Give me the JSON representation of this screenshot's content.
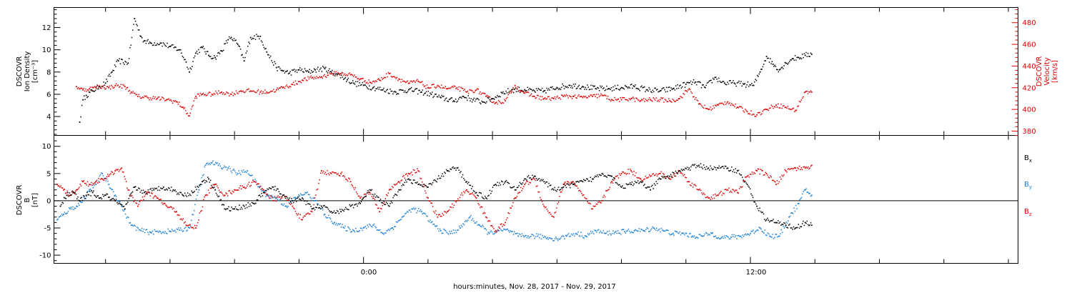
{
  "x_axis": {
    "label": "hours:minutes, Nov. 28, 2017 - Nov. 29, 2017",
    "tick_labels": [
      "0:00",
      "12:00"
    ]
  },
  "colors": {
    "black": "#000000",
    "red": "#e00000",
    "blue": "#1a7fd6"
  },
  "chart_data": [
    {
      "type": "scatter",
      "title": "",
      "x_units": "hours relative to 2017-11-29 00:00 UTC",
      "xlim": [
        -9.6,
        20.3
      ],
      "grid": false,
      "y_left": {
        "label_lines": [
          "DSCOVR",
          "Ion Density",
          "[cm⁻³]"
        ],
        "ylim": [
          2.3,
          13.8
        ],
        "ticks": [
          4,
          6,
          8,
          10,
          12
        ]
      },
      "y_right": {
        "label_lines": [
          "DSCOVR",
          "Velocity",
          "[km/s]"
        ],
        "ylim": [
          376,
          494
        ],
        "ticks": [
          380,
          400,
          420,
          440,
          460,
          480
        ]
      },
      "series": [
        {
          "role": "density",
          "axis": "left",
          "color": "#000000",
          "x": [
            -8.8,
            -8.7,
            -8.6,
            -8.4,
            -8.2,
            -8.0,
            -7.8,
            -7.6,
            -7.3,
            -7.1,
            -6.9,
            -6.8,
            -6.6,
            -6.3,
            -6.0,
            -5.7,
            -5.5,
            -5.4,
            -5.2,
            -5.0,
            -4.8,
            -4.6,
            -4.4,
            -4.2,
            -4.1,
            -3.9,
            -3.7,
            -3.5,
            -3.2,
            -3.0,
            -2.7,
            -2.5,
            -2.3,
            -2.0,
            -1.7,
            -1.5,
            -1.2,
            -1.0,
            -0.8,
            -0.5,
            -0.3,
            0.0,
            0.3,
            0.6,
            1.0,
            1.4,
            1.8,
            2.1,
            2.4,
            2.8,
            3.1,
            3.4,
            3.7,
            4.0,
            4.3,
            4.6,
            5.0,
            5.3,
            5.6,
            6.0,
            6.4,
            6.8,
            7.2,
            7.6,
            8.0,
            8.4,
            8.8,
            9.2,
            9.6,
            10.0,
            10.3,
            10.6,
            10.9,
            11.2,
            11.5,
            11.8,
            12.1,
            12.3,
            12.5,
            12.7,
            12.9,
            13.1,
            13.3,
            13.5,
            13.7,
            13.9
          ],
          "y": [
            3.5,
            5.5,
            5.9,
            6.3,
            6.7,
            7.0,
            8.0,
            9.0,
            8.8,
            12.8,
            11.2,
            10.8,
            10.6,
            10.6,
            10.3,
            10.0,
            8.9,
            8.0,
            9.7,
            10.2,
            9.5,
            9.3,
            9.9,
            10.9,
            11.1,
            10.5,
            9.0,
            11.1,
            11.2,
            9.8,
            8.4,
            8.1,
            7.9,
            8.2,
            8.0,
            8.2,
            8.3,
            8.0,
            7.8,
            7.3,
            7.0,
            6.8,
            6.6,
            6.4,
            6.2,
            6.4,
            6.2,
            6.0,
            5.7,
            5.4,
            5.8,
            5.5,
            5.3,
            5.6,
            6.1,
            6.4,
            6.4,
            6.3,
            6.3,
            6.6,
            6.8,
            6.7,
            6.5,
            6.5,
            6.6,
            6.7,
            6.4,
            6.3,
            6.5,
            6.9,
            7.1,
            6.6,
            7.5,
            7.0,
            7.0,
            6.9,
            6.8,
            8.0,
            9.4,
            8.7,
            8.2,
            8.8,
            9.2,
            9.3,
            9.5,
            9.6
          ]
        },
        {
          "role": "velocity",
          "axis": "right",
          "color": "#e00000",
          "x": [
            -8.9,
            -8.7,
            -8.5,
            -8.3,
            -8.1,
            -7.9,
            -7.7,
            -7.4,
            -7.2,
            -7.0,
            -6.7,
            -6.4,
            -6.1,
            -5.8,
            -5.6,
            -5.4,
            -5.2,
            -5.0,
            -4.7,
            -4.4,
            -4.1,
            -3.8,
            -3.5,
            -3.2,
            -3.0,
            -2.7,
            -2.5,
            -2.2,
            -1.9,
            -1.6,
            -1.3,
            -1.0,
            -0.7,
            -0.4,
            -0.1,
            0.2,
            0.5,
            0.8,
            1.1,
            1.4,
            1.7,
            2.0,
            2.3,
            2.6,
            2.9,
            3.2,
            3.5,
            3.8,
            4.1,
            4.4,
            4.7,
            5.0,
            5.3,
            5.6,
            5.9,
            6.2,
            6.5,
            6.8,
            7.1,
            7.4,
            7.7,
            8.0,
            8.3,
            8.6,
            8.9,
            9.2,
            9.5,
            9.8,
            10.1,
            10.4,
            10.7,
            11.0,
            11.3,
            11.6,
            11.9,
            12.2,
            12.5,
            12.8,
            13.1,
            13.4,
            13.7,
            13.9
          ],
          "y": [
            421,
            418,
            419,
            420,
            421,
            420,
            422,
            421,
            416,
            412,
            411,
            410,
            409,
            407,
            402,
            394,
            412,
            414,
            414,
            416,
            414,
            417,
            417,
            416,
            416,
            418,
            420,
            423,
            427,
            429,
            430,
            433,
            433,
            432,
            428,
            425,
            427,
            433,
            428,
            424,
            426,
            420,
            422,
            419,
            420,
            416,
            418,
            412,
            406,
            408,
            422,
            415,
            412,
            410,
            410,
            412,
            412,
            411,
            412,
            413,
            409,
            409,
            410,
            408,
            409,
            409,
            408,
            410,
            419,
            405,
            400,
            404,
            407,
            402,
            398,
            395,
            400,
            404,
            402,
            399,
            416,
            416
          ]
        }
      ]
    },
    {
      "type": "scatter",
      "title": "",
      "x_units": "hours relative to 2017-11-29 00:00 UTC",
      "xlim": [
        -9.6,
        20.3
      ],
      "grid": false,
      "zero_line": true,
      "y_left": {
        "label_lines": [
          "DSCOVR",
          "B",
          "[nT]"
        ],
        "ylim": [
          -11.5,
          12
        ],
        "ticks": [
          -10,
          -5,
          0,
          5,
          10
        ]
      },
      "legend": [
        {
          "label": "B",
          "subscript": "x",
          "color": "#000000"
        },
        {
          "label": "B",
          "subscript": "y",
          "color": "#1a7fd6"
        },
        {
          "label": "B",
          "subscript": "z",
          "color": "#e00000"
        }
      ],
      "series": [
        {
          "name": "Bx",
          "color": "#000000",
          "x": [
            -9.4,
            -9.2,
            -9.0,
            -8.8,
            -8.6,
            -8.4,
            -8.2,
            -8.0,
            -7.7,
            -7.4,
            -7.1,
            -6.8,
            -6.5,
            -6.2,
            -5.9,
            -5.6,
            -5.3,
            -5.0,
            -4.8,
            -4.6,
            -4.3,
            -4.0,
            -3.7,
            -3.4,
            -3.1,
            -2.8,
            -2.5,
            -2.2,
            -1.9,
            -1.6,
            -1.3,
            -1.0,
            -0.7,
            -0.4,
            -0.1,
            0.2,
            0.5,
            0.8,
            1.1,
            1.4,
            1.7,
            2.0,
            2.3,
            2.6,
            2.9,
            3.2,
            3.5,
            3.8,
            4.1,
            4.4,
            4.7,
            5.0,
            5.3,
            5.6,
            5.9,
            6.2,
            6.5,
            6.8,
            7.1,
            7.4,
            7.7,
            8.0,
            8.3,
            8.6,
            8.9,
            9.2,
            9.5,
            9.8,
            10.1,
            10.4,
            10.7,
            11.0,
            11.3,
            11.6,
            11.9,
            12.2,
            12.5,
            12.8,
            13.1,
            13.4,
            13.7,
            13.9
          ],
          "y": [
            -1.0,
            1.0,
            1.5,
            0.0,
            1.0,
            1.5,
            0.5,
            1.0,
            0.0,
            -1.5,
            2.5,
            1.5,
            2.0,
            2.5,
            2.0,
            1.0,
            1.5,
            3.5,
            4.0,
            2.0,
            -1.5,
            -1.5,
            -1.0,
            -0.5,
            1.5,
            2.5,
            1.0,
            0.0,
            0.5,
            -1.5,
            -1.0,
            -2.0,
            -2.0,
            -1.0,
            -0.5,
            2.0,
            0.0,
            -1.0,
            2.0,
            4.0,
            3.0,
            2.5,
            4.0,
            5.5,
            6.0,
            3.5,
            1.5,
            0.5,
            3.0,
            3.5,
            2.0,
            4.0,
            4.5,
            3.5,
            2.0,
            2.5,
            3.0,
            3.5,
            4.0,
            5.0,
            4.5,
            2.5,
            3.0,
            3.5,
            2.0,
            4.0,
            4.5,
            5.5,
            6.0,
            6.5,
            6.0,
            6.0,
            6.0,
            5.5,
            3.0,
            -1.0,
            -3.5,
            -4.0,
            -4.5,
            -5.0,
            -4.0,
            -4.5
          ]
        },
        {
          "name": "By",
          "color": "#1a7fd6",
          "x": [
            -9.5,
            -9.3,
            -9.1,
            -8.9,
            -8.7,
            -8.5,
            -8.3,
            -8.1,
            -7.9,
            -7.7,
            -7.5,
            -7.2,
            -6.9,
            -6.6,
            -6.3,
            -6.0,
            -5.7,
            -5.4,
            -5.1,
            -4.9,
            -4.7,
            -4.5,
            -4.2,
            -3.9,
            -3.6,
            -3.3,
            -3.0,
            -2.7,
            -2.4,
            -2.1,
            -1.8,
            -1.5,
            -1.2,
            -0.9,
            -0.6,
            -0.3,
            0.0,
            0.3,
            0.6,
            0.9,
            1.2,
            1.5,
            1.8,
            2.1,
            2.4,
            2.7,
            3.0,
            3.3,
            3.6,
            3.9,
            4.2,
            4.5,
            4.8,
            5.1,
            5.4,
            5.7,
            6.0,
            6.3,
            6.6,
            6.9,
            7.2,
            7.5,
            7.8,
            8.1,
            8.4,
            8.7,
            9.0,
            9.3,
            9.6,
            9.9,
            10.2,
            10.5,
            10.8,
            11.1,
            11.4,
            11.7,
            12.0,
            12.3,
            12.6,
            12.9,
            13.2,
            13.5,
            13.7,
            13.9
          ],
          "y": [
            -3.5,
            -2.5,
            -1.5,
            -1.0,
            0.0,
            2.0,
            3.0,
            5.0,
            3.0,
            1.0,
            -1.0,
            -4.5,
            -5.5,
            -5.8,
            -5.7,
            -5.6,
            -5.4,
            -5.0,
            2.0,
            6.5,
            7.0,
            6.5,
            6.0,
            5.0,
            5.5,
            3.0,
            1.0,
            0.5,
            -1.0,
            0.5,
            1.5,
            0.0,
            -2.5,
            -4.0,
            -5.0,
            -5.5,
            -5.0,
            -4.5,
            -6.0,
            -5.0,
            -3.0,
            -1.5,
            -2.0,
            -4.0,
            -5.5,
            -6.0,
            -5.0,
            -3.0,
            -4.5,
            -6.0,
            -5.5,
            -5.5,
            -6.5,
            -6.5,
            -6.5,
            -6.8,
            -7.0,
            -6.5,
            -6.0,
            -6.5,
            -5.5,
            -6.0,
            -5.8,
            -5.7,
            -5.5,
            -5.5,
            -5.0,
            -5.5,
            -6.0,
            -6.0,
            -6.5,
            -6.5,
            -6.0,
            -6.8,
            -6.7,
            -6.5,
            -6.0,
            -5.0,
            -6.5,
            -6.5,
            -3.0,
            -0.5,
            2.0,
            1.0
          ]
        },
        {
          "name": "Bz",
          "color": "#e00000",
          "x": [
            -9.5,
            -9.3,
            -9.1,
            -8.9,
            -8.7,
            -8.5,
            -8.3,
            -8.1,
            -7.9,
            -7.7,
            -7.5,
            -7.3,
            -7.0,
            -6.7,
            -6.4,
            -6.1,
            -5.8,
            -5.5,
            -5.2,
            -4.9,
            -4.6,
            -4.3,
            -4.0,
            -3.7,
            -3.4,
            -3.1,
            -2.8,
            -2.5,
            -2.2,
            -1.9,
            -1.6,
            -1.3,
            -1.0,
            -0.7,
            -0.4,
            -0.1,
            0.2,
            0.5,
            0.8,
            1.1,
            1.4,
            1.7,
            2.0,
            2.3,
            2.6,
            2.9,
            3.2,
            3.5,
            3.8,
            4.1,
            4.4,
            4.7,
            5.0,
            5.3,
            5.6,
            5.9,
            6.2,
            6.5,
            6.8,
            7.1,
            7.4,
            7.7,
            8.0,
            8.3,
            8.6,
            8.9,
            9.2,
            9.5,
            9.8,
            10.1,
            10.4,
            10.7,
            11.0,
            11.3,
            11.6,
            11.9,
            12.2,
            12.5,
            12.8,
            13.1,
            13.4,
            13.7,
            13.9
          ],
          "y": [
            3.0,
            2.0,
            1.0,
            2.0,
            3.5,
            3.0,
            3.5,
            4.0,
            4.5,
            5.5,
            6.0,
            2.0,
            -1.0,
            1.5,
            0.5,
            -1.0,
            -2.0,
            -4.5,
            -5.0,
            1.0,
            3.0,
            1.0,
            2.0,
            2.5,
            3.5,
            2.0,
            0.0,
            1.0,
            -1.0,
            -3.5,
            -2.0,
            5.5,
            5.0,
            5.0,
            3.5,
            0.5,
            1.5,
            -2.0,
            2.0,
            3.5,
            5.0,
            5.5,
            0.5,
            -3.0,
            -2.0,
            0.0,
            2.0,
            0.5,
            -3.0,
            -5.5,
            -4.0,
            0.5,
            3.0,
            4.0,
            -1.0,
            -3.0,
            3.0,
            3.5,
            1.0,
            -1.5,
            0.0,
            3.5,
            5.0,
            5.5,
            4.0,
            4.5,
            5.0,
            4.0,
            5.5,
            3.5,
            2.0,
            0.5,
            1.0,
            2.0,
            1.5,
            4.5,
            5.5,
            5.0,
            3.0,
            5.5,
            6.0,
            6.0,
            6.5
          ]
        }
      ]
    }
  ]
}
